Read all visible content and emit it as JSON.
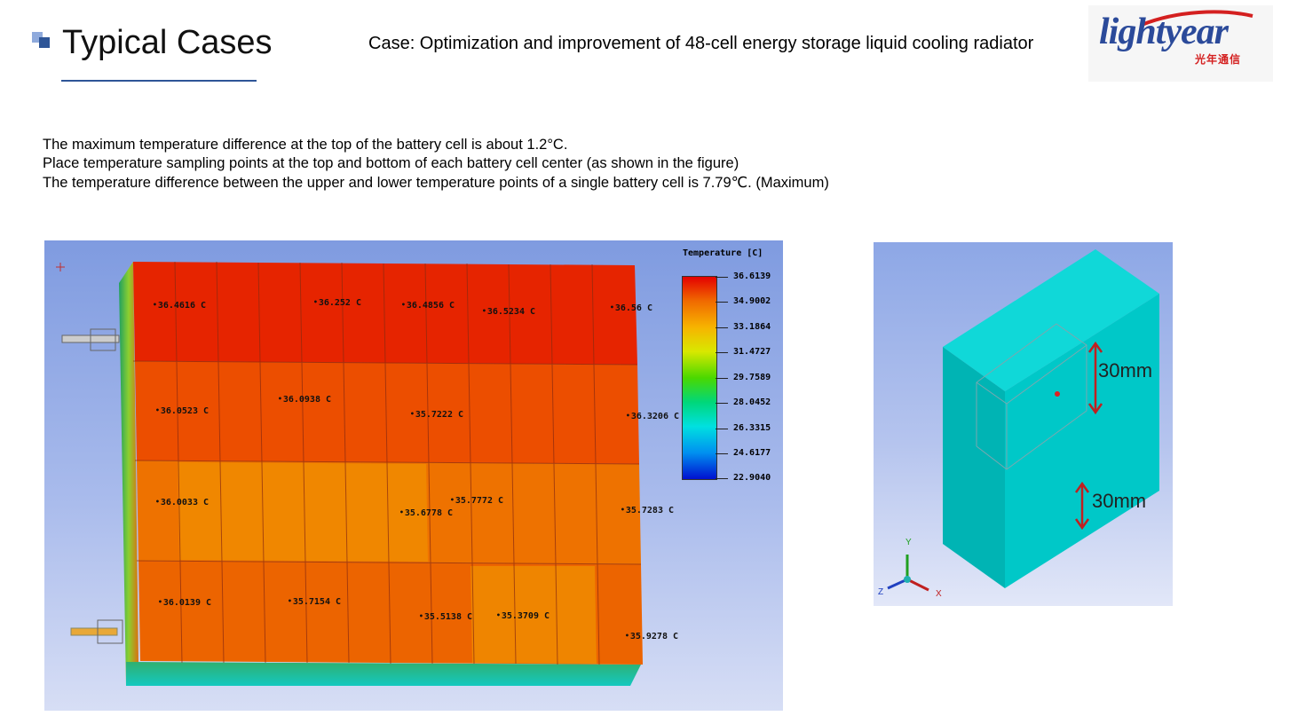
{
  "header": {
    "title": "Typical Cases",
    "case_subtitle": "Case: Optimization and improvement of 48-cell energy storage liquid cooling radiator",
    "logo_text": "lightyear",
    "logo_subtext": "光年通信"
  },
  "notes": [
    "The maximum temperature difference at the top of the battery cell is about 1.2°C.",
    "Place temperature sampling points at the top and bottom of each battery cell center  (as shown in the figure)",
    "The temperature difference between the upper and lower temperature points of a single battery cell is 7.79℃.  (Maximum)"
  ],
  "simulation": {
    "legend_title": "Temperature [C]",
    "legend_values": [
      "36.6139",
      "34.9002",
      "33.1864",
      "31.4727",
      "29.7589",
      "28.0452",
      "26.3315",
      "24.6177",
      "22.9040"
    ],
    "probes": [
      "36.4616 C",
      "36.252 C",
      "36.4856 C",
      "36.5234 C",
      "36.56 C",
      "36.0523 C",
      "36.0938 C",
      "35.7222 C",
      "36.3206 C",
      "36.0033 C",
      "35.7772 C",
      "35.6778 C",
      "35.7283 C",
      "36.0139 C",
      "35.7154 C",
      "35.5138 C",
      "35.3709 C",
      "35.9278 C"
    ],
    "colors": {
      "hot": "#e41e00",
      "warm": "#ee5c00",
      "mid": "#f07a00",
      "cool": "#ee8e00"
    }
  },
  "detail": {
    "dimension_top": "30mm",
    "dimension_bottom": "30mm",
    "axes": {
      "x": "X",
      "y": "Y",
      "z": "Z"
    },
    "box_color": "#00c8c8"
  }
}
